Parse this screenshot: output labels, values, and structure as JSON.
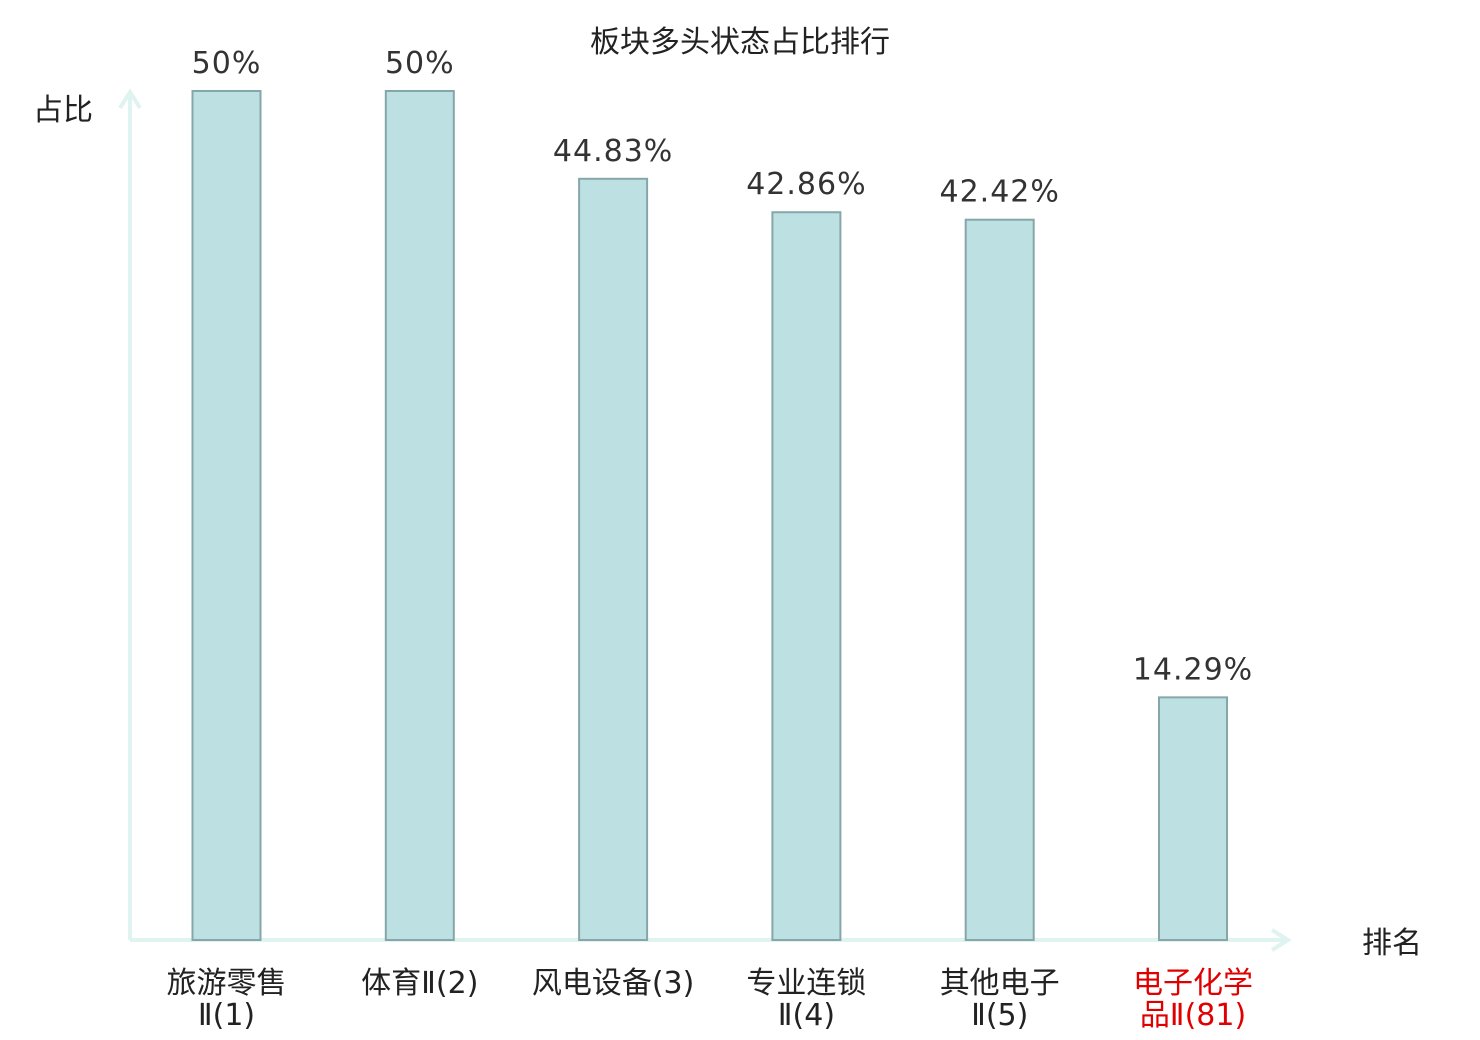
{
  "chart_data": {
    "type": "bar",
    "title": "板块多头状态占比排行",
    "ylabel": "占比",
    "xlabel": "排名",
    "ylim": [
      0,
      50
    ],
    "grid": false,
    "categories": [
      [
        "旅游零售",
        "Ⅱ(1)"
      ],
      [
        "体育Ⅱ(2)"
      ],
      [
        "风电设备(3)"
      ],
      [
        "专业连锁",
        "Ⅱ(4)"
      ],
      [
        "其他电子",
        "Ⅱ(5)"
      ],
      [
        "电子化学",
        "品Ⅱ(81)"
      ]
    ],
    "values": [
      50,
      50,
      44.83,
      42.86,
      42.42,
      14.29
    ],
    "value_labels": [
      "50%",
      "50%",
      "44.83%",
      "42.86%",
      "42.42%",
      "14.29%"
    ],
    "highlight_index": 5
  },
  "colors": {
    "bar_fill": "#bde0e3",
    "bar_stroke": "#85a7a9",
    "axis": "#dff3f0",
    "text": "#222222",
    "value_text": "#333333",
    "highlight": "#e00000"
  }
}
